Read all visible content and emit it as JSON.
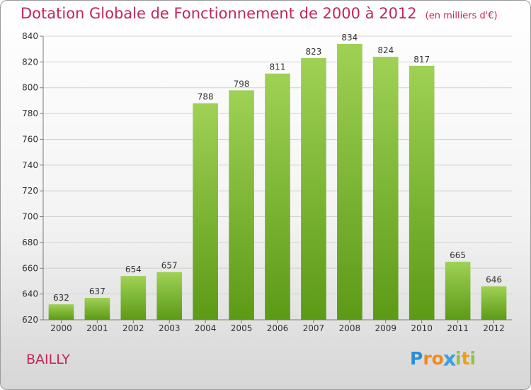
{
  "title": "Dotation Globale de Fonctionnement de 2000 à 2012",
  "unit": "(en milliers d'€)",
  "place": "BAILLY",
  "logo": {
    "letters": [
      "P",
      "r",
      "o",
      "x",
      "i",
      "t",
      "i"
    ],
    "colors": [
      "#2b8fd6",
      "#f08a1c",
      "#f08a1c",
      "#3aa0e0",
      "#8bc34a",
      "#e8a21a",
      "#8bc34a"
    ]
  },
  "colors": {
    "bar_top": "#9fd155",
    "bar_bottom": "#5c9a16",
    "text_accent": "#c0265a"
  },
  "chart_data": {
    "type": "bar",
    "categories": [
      "2000",
      "2001",
      "2002",
      "2003",
      "2004",
      "2005",
      "2006",
      "2007",
      "2008",
      "2009",
      "2010",
      "2011",
      "2012"
    ],
    "values": [
      632,
      637,
      654,
      657,
      788,
      798,
      811,
      823,
      834,
      824,
      817,
      665,
      646
    ],
    "ylim": [
      620,
      840
    ],
    "yticks": [
      620,
      640,
      660,
      680,
      700,
      720,
      740,
      760,
      780,
      800,
      820,
      840
    ],
    "grid": true,
    "legend": "none"
  }
}
